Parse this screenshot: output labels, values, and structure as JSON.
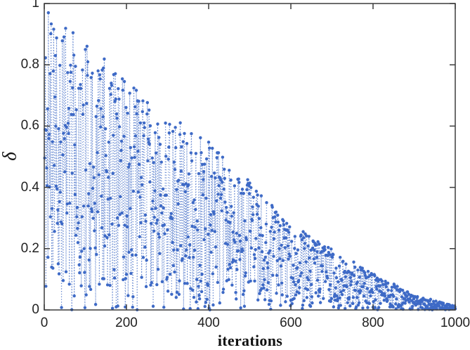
{
  "figure": {
    "background": "#ffffff",
    "axis_color": "#3c3c3c",
    "tick_label_color": "#222222",
    "series_color": "#3e6ac6"
  },
  "chart_data": {
    "type": "line",
    "style": "dotted connecting lines with filled circle markers (MATLAB-like stem appearance)",
    "title": "",
    "xlabel": "iterations",
    "ylabel": "δ",
    "xlim": [
      0,
      1000
    ],
    "ylim": [
      0,
      1
    ],
    "xticks": [
      0,
      200,
      400,
      600,
      800,
      1000
    ],
    "xtick_labels": [
      "0",
      "200",
      "400",
      "600",
      "800",
      "1000"
    ],
    "yticks": [
      0,
      0.2,
      0.4,
      0.6,
      0.8,
      1
    ],
    "ytick_labels": [
      "0",
      "0.2",
      "0.4",
      "0.6",
      "0.8",
      "1"
    ],
    "grid": false,
    "legend": null,
    "series": [
      {
        "name": "delta",
        "n_points": 1000,
        "seed": 11,
        "generation": "y[i] = envelope(x[i]) * u[i]; u ~ Uniform(0,1), ~8.5% of samples boosted to 0.78-1.0 of envelope (visible peak markers)",
        "envelope_x": [
          0,
          100,
          200,
          300,
          400,
          500,
          600,
          700,
          800,
          900,
          1000
        ],
        "envelope_y": [
          0.97,
          0.88,
          0.77,
          0.64,
          0.55,
          0.42,
          0.28,
          0.2,
          0.12,
          0.05,
          0.012
        ],
        "max_point": {
          "x": 10,
          "y": 0.97
        }
      }
    ]
  }
}
